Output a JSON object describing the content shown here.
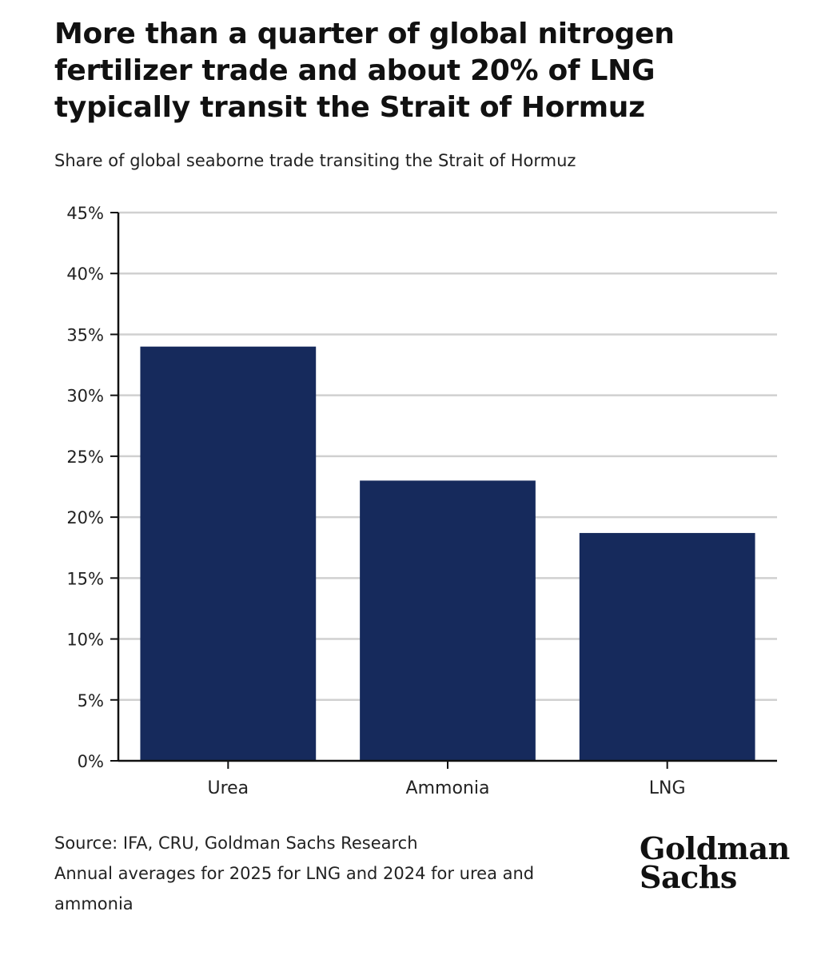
{
  "title": "More than a quarter of global nitrogen fertilizer trade and about 20% of LNG typically transit the Strait of Hormuz",
  "subtitle": "Share of global seaborne trade transiting the Strait of Hormuz",
  "source_line": "Source: IFA, CRU, Goldman Sachs Research",
  "note_line": "Annual averages for 2025 for LNG and 2024 for urea and ammonia",
  "logo": {
    "line1": "Goldman",
    "line2": "Sachs"
  },
  "colors": {
    "bar": "#162a5c",
    "grid": "#d0d0d0",
    "axis": "#111111"
  },
  "chart_data": {
    "type": "bar",
    "categories": [
      "Urea",
      "Ammonia",
      "LNG"
    ],
    "values": [
      34,
      23,
      18.7
    ],
    "ylim": [
      0,
      45
    ],
    "yticks": [
      0,
      5,
      10,
      15,
      20,
      25,
      30,
      35,
      40,
      45
    ],
    "ytick_labels": [
      "0%",
      "5%",
      "10%",
      "15%",
      "20%",
      "25%",
      "30%",
      "35%",
      "40%",
      "45%"
    ],
    "grid": true,
    "legend": "none"
  }
}
